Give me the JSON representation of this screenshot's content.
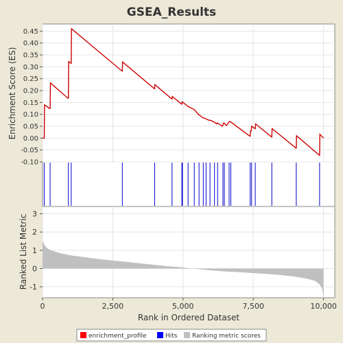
{
  "chart_data": {
    "title": "GSEA_Results",
    "xlabel": "Rank in Ordered Dataset",
    "xlim": [
      0,
      10400
    ],
    "x_ticks": [
      0,
      2500,
      5000,
      7500,
      10000
    ],
    "x_tick_labels": [
      "0",
      "2,500",
      "5,000",
      "7,500",
      "10,000"
    ],
    "panels": [
      {
        "id": "enrichment",
        "type": "line",
        "ylabel": "Enrichment Score (ES)",
        "ylim": [
          -0.1,
          0.48
        ],
        "y_ticks": [
          -0.1,
          -0.05,
          0.0,
          0.05,
          0.1,
          0.15,
          0.2,
          0.25,
          0.3,
          0.35,
          0.4,
          0.45
        ],
        "y_tick_labels": [
          "-0.10",
          "-0.05",
          "0.00",
          "0.05",
          "0.10",
          "0.15",
          "0.20",
          "0.25",
          "0.30",
          "0.35",
          "0.40",
          "0.45"
        ],
        "grid": true,
        "color": "#cc0000",
        "series_name": "enrichment_profile",
        "points": [
          [
            0,
            0.0
          ],
          [
            60,
            0.0
          ],
          [
            70,
            0.14
          ],
          [
            250,
            0.125
          ],
          [
            270,
            0.125
          ],
          [
            280,
            0.232
          ],
          [
            900,
            0.168
          ],
          [
            920,
            0.168
          ],
          [
            930,
            0.322
          ],
          [
            1010,
            0.315
          ],
          [
            1020,
            0.315
          ],
          [
            1030,
            0.46
          ],
          [
            2830,
            0.282
          ],
          [
            2840,
            0.282
          ],
          [
            2850,
            0.32
          ],
          [
            3980,
            0.208
          ],
          [
            3990,
            0.208
          ],
          [
            4000,
            0.225
          ],
          [
            4600,
            0.165
          ],
          [
            4610,
            0.165
          ],
          [
            4620,
            0.175
          ],
          [
            4950,
            0.143
          ],
          [
            4960,
            0.143
          ],
          [
            4970,
            0.153
          ],
          [
            5180,
            0.133
          ],
          [
            5400,
            0.12
          ],
          [
            5550,
            0.1
          ],
          [
            5700,
            0.086
          ],
          [
            5800,
            0.082
          ],
          [
            5900,
            0.076
          ],
          [
            6000,
            0.074
          ],
          [
            6100,
            0.068
          ],
          [
            6200,
            0.06
          ],
          [
            6220,
            0.064
          ],
          [
            6400,
            0.05
          ],
          [
            6450,
            0.064
          ],
          [
            6550,
            0.053
          ],
          [
            6650,
            0.07
          ],
          [
            6700,
            0.068
          ],
          [
            7380,
            0.008
          ],
          [
            7390,
            0.008
          ],
          [
            7400,
            0.03
          ],
          [
            7430,
            0.03
          ],
          [
            7440,
            0.05
          ],
          [
            7560,
            0.04
          ],
          [
            7570,
            0.04
          ],
          [
            7580,
            0.06
          ],
          [
            8150,
            0.005
          ],
          [
            8160,
            0.005
          ],
          [
            8170,
            0.04
          ],
          [
            9020,
            -0.042
          ],
          [
            9030,
            -0.042
          ],
          [
            9040,
            0.01
          ],
          [
            9850,
            -0.072
          ],
          [
            9860,
            -0.072
          ],
          [
            9870,
            0.016
          ],
          [
            10000,
            0.0
          ]
        ]
      },
      {
        "id": "hits",
        "type": "ticks",
        "color": "#0000cc",
        "series_name": "Hits",
        "x": [
          60,
          270,
          920,
          1020,
          2840,
          3990,
          4610,
          4960,
          4980,
          5180,
          5400,
          5570,
          5720,
          5820,
          5960,
          6120,
          6230,
          6420,
          6470,
          6640,
          6700,
          7390,
          7440,
          7570,
          8160,
          9030,
          9860
        ]
      },
      {
        "id": "ranking",
        "type": "area",
        "ylabel": "Ranked List Metric",
        "ylim": [
          -1.6,
          3.4
        ],
        "y_ticks": [
          -1,
          0,
          1,
          2,
          3
        ],
        "y_tick_labels": [
          "-1",
          "0",
          "1",
          "2",
          "3"
        ],
        "color": "#c0c0c0",
        "series_name": "Ranking metric scores",
        "points": [
          [
            0,
            1.55
          ],
          [
            50,
            1.35
          ],
          [
            100,
            1.22
          ],
          [
            200,
            1.08
          ],
          [
            300,
            1.0
          ],
          [
            500,
            0.9
          ],
          [
            700,
            0.82
          ],
          [
            1000,
            0.72
          ],
          [
            1500,
            0.62
          ],
          [
            2000,
            0.52
          ],
          [
            2500,
            0.44
          ],
          [
            3000,
            0.36
          ],
          [
            3500,
            0.28
          ],
          [
            4000,
            0.2
          ],
          [
            4500,
            0.12
          ],
          [
            5000,
            0.06
          ],
          [
            5300,
            0.0
          ],
          [
            5600,
            -0.04
          ],
          [
            6000,
            -0.1
          ],
          [
            6500,
            -0.16
          ],
          [
            7000,
            -0.2
          ],
          [
            7500,
            -0.25
          ],
          [
            8000,
            -0.3
          ],
          [
            8500,
            -0.36
          ],
          [
            9000,
            -0.45
          ],
          [
            9400,
            -0.55
          ],
          [
            9700,
            -0.68
          ],
          [
            9850,
            -0.85
          ],
          [
            9950,
            -1.1
          ],
          [
            10000,
            -1.6
          ]
        ]
      }
    ],
    "legend": {
      "placement": "bottom",
      "items": [
        {
          "label": "enrichment_profile",
          "color": "#ff0000"
        },
        {
          "label": "Hits",
          "color": "#0000ff"
        },
        {
          "label": "Ranking metric scores",
          "color": "#c0c0c0"
        }
      ]
    }
  }
}
